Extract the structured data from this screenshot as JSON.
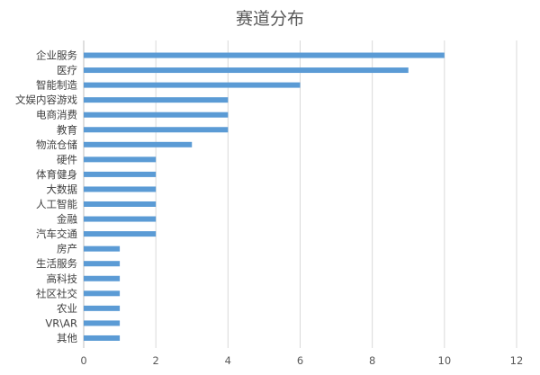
{
  "chart_data": {
    "type": "bar",
    "orientation": "horizontal",
    "title": "赛道分布",
    "xlabel": "",
    "ylabel": "",
    "categories": [
      "企业服务",
      "医疗",
      "智能制造",
      "文娱内容游戏",
      "电商消费",
      "教育",
      "物流仓储",
      "硬件",
      "体育健身",
      "大数据",
      "人工智能",
      "金融",
      "汽车交通",
      "房产",
      "生活服务",
      "高科技",
      "社区社交",
      "农业",
      "VR\\AR",
      "其他"
    ],
    "values": [
      10,
      9,
      6,
      4,
      4,
      4,
      3,
      2,
      2,
      2,
      2,
      2,
      2,
      1,
      1,
      1,
      1,
      1,
      1,
      1
    ],
    "xlim": [
      0,
      12
    ],
    "xticks": [
      0,
      2,
      4,
      6,
      8,
      10,
      12
    ],
    "grid": "vertical",
    "legend": "none",
    "bar_color": "#5b9bd5"
  }
}
